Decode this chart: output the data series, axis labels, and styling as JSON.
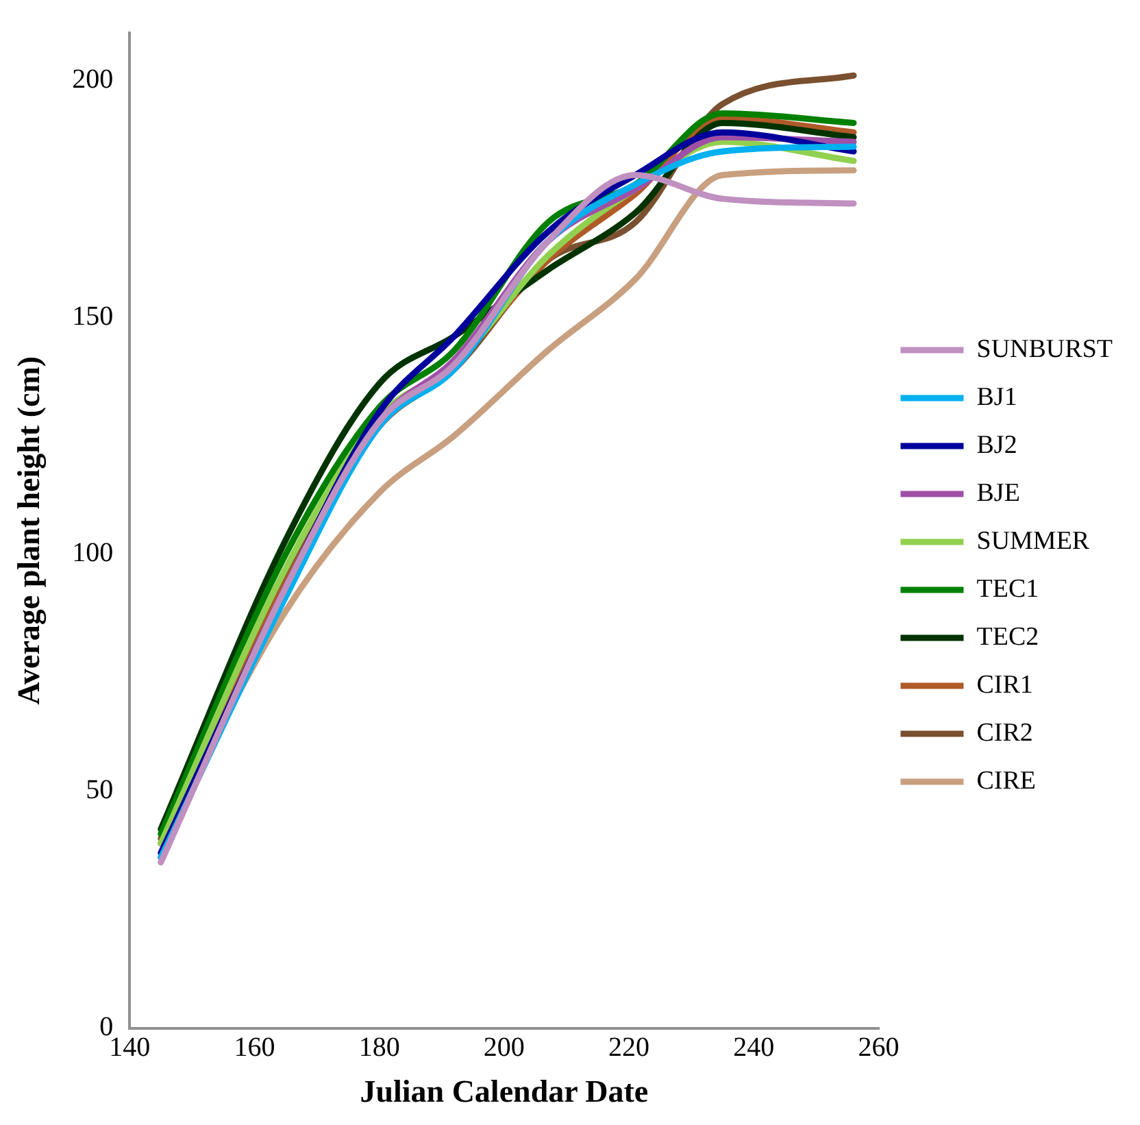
{
  "chart_data": {
    "type": "line",
    "xlabel": "Julian Calendar Date",
    "ylabel": "Average plant height (cm)",
    "x": [
      145,
      165,
      180,
      192,
      207,
      221,
      235,
      256
    ],
    "xlim": [
      140,
      260
    ],
    "xticks": [
      140,
      160,
      180,
      200,
      220,
      240,
      260
    ],
    "ylim": [
      0,
      210
    ],
    "yticks": [
      0,
      50,
      100,
      150,
      200
    ],
    "grid": false,
    "legend": "right",
    "marker": "none",
    "line_style": "solid",
    "series": [
      {
        "name": "SUNBURST",
        "color": "#c090c0",
        "values": [
          35,
          93,
          128,
          140,
          166,
          180,
          175,
          174
        ]
      },
      {
        "name": "BJ1",
        "color": "#00b0f0",
        "values": [
          36,
          91,
          127,
          139,
          166,
          178,
          185,
          186
        ]
      },
      {
        "name": "BJ2",
        "color": "#00009c",
        "values": [
          37,
          93,
          130,
          146,
          168,
          180,
          189,
          185
        ]
      },
      {
        "name": "BJE",
        "color": "#a050a8",
        "values": [
          36,
          93,
          128,
          141,
          166,
          177,
          188,
          187
        ]
      },
      {
        "name": "SUMMER",
        "color": "#92d050",
        "values": [
          39,
          97,
          129,
          140,
          163,
          177,
          187,
          183
        ]
      },
      {
        "name": "TEC1",
        "color": "#008000",
        "values": [
          41,
          100,
          131,
          143,
          170,
          178,
          193,
          191
        ]
      },
      {
        "name": "TEC2",
        "color": "#003300",
        "values": [
          42,
          103,
          136,
          146,
          160,
          172,
          191,
          188
        ]
      },
      {
        "name": "CIR1",
        "color": "#b05a28",
        "values": [
          39,
          94,
          127,
          140,
          162,
          176,
          192,
          189
        ]
      },
      {
        "name": "CIR2",
        "color": "#7a5030",
        "values": [
          40,
          95,
          127,
          139,
          162,
          170,
          195,
          201
        ]
      },
      {
        "name": "CIRE",
        "color": "#c8a080",
        "values": [
          39,
          88,
          113,
          125,
          143,
          158,
          180,
          181
        ]
      }
    ]
  }
}
